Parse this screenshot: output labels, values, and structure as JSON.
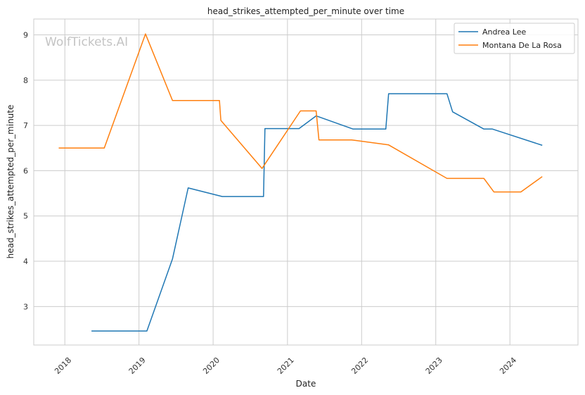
{
  "watermark": "WolfTickets.AI",
  "chart_data": {
    "type": "line",
    "title": "head_strikes_attempted_per_minute over time",
    "xlabel": "Date",
    "ylabel": "head_strikes_attempted_per_minute",
    "x_ticks": [
      "2018",
      "2019",
      "2020",
      "2021",
      "2022",
      "2023",
      "2024"
    ],
    "y_ticks": [
      3,
      4,
      5,
      6,
      7,
      8,
      9
    ],
    "xlim": [
      "2017-08-01",
      "2024-12-01"
    ],
    "ylim": [
      2.15,
      9.35
    ],
    "grid": true,
    "legend_position": "top-right",
    "series": [
      {
        "name": "Andrea Lee",
        "color": "#1f77b4",
        "points": [
          [
            "2018-05-12",
            2.46
          ],
          [
            "2019-02-09",
            2.46
          ],
          [
            "2019-06-15",
            4.05
          ],
          [
            "2019-08-31",
            5.62
          ],
          [
            "2020-02-15",
            5.43
          ],
          [
            "2020-09-05",
            5.43
          ],
          [
            "2020-09-12",
            6.93
          ],
          [
            "2021-02-27",
            6.93
          ],
          [
            "2021-05-22",
            7.21
          ],
          [
            "2021-11-20",
            6.92
          ],
          [
            "2022-04-30",
            6.92
          ],
          [
            "2022-05-14",
            7.7
          ],
          [
            "2023-02-25",
            7.7
          ],
          [
            "2023-03-25",
            7.3
          ],
          [
            "2023-08-26",
            6.92
          ],
          [
            "2023-10-07",
            6.92
          ],
          [
            "2024-06-08",
            6.56
          ]
        ]
      },
      {
        "name": "Montana De La Rosa",
        "color": "#ff7f0e",
        "points": [
          [
            "2017-12-02",
            6.5
          ],
          [
            "2018-07-14",
            6.5
          ],
          [
            "2019-02-02",
            9.02
          ],
          [
            "2019-06-15",
            7.55
          ],
          [
            "2020-02-01",
            7.55
          ],
          [
            "2020-02-08",
            7.11
          ],
          [
            "2020-08-29",
            6.05
          ],
          [
            "2021-03-06",
            7.32
          ],
          [
            "2021-05-22",
            7.32
          ],
          [
            "2021-06-05",
            6.68
          ],
          [
            "2021-11-13",
            6.68
          ],
          [
            "2022-05-14",
            6.57
          ],
          [
            "2023-02-25",
            5.83
          ],
          [
            "2023-08-26",
            5.83
          ],
          [
            "2023-10-14",
            5.53
          ],
          [
            "2024-02-24",
            5.53
          ],
          [
            "2024-06-08",
            5.87
          ]
        ]
      }
    ]
  }
}
